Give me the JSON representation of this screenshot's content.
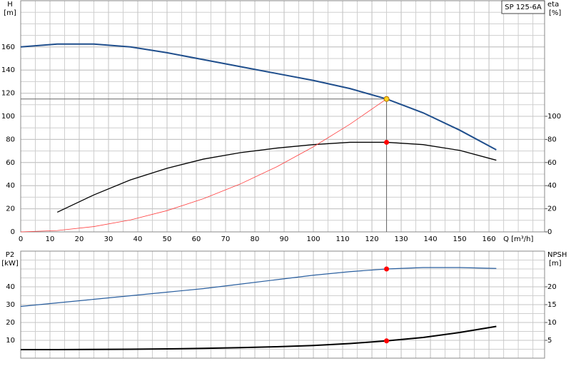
{
  "chart_data": [
    {
      "type": "line",
      "label_box": "SP 125-6A",
      "y_label": "H",
      "y_unit": "[m]",
      "y2_label": "eta",
      "y2_unit": "[%]",
      "x_label": "Q [m³/h]",
      "show_x_tick_labels": true,
      "x": [
        0,
        12.5,
        25,
        37.5,
        50,
        62.5,
        75,
        87.5,
        100,
        112.5,
        125,
        137.5,
        150,
        162.5
      ],
      "xlim": [
        0,
        179
      ],
      "xticks": [
        0,
        10,
        20,
        30,
        40,
        50,
        60,
        70,
        80,
        90,
        100,
        110,
        120,
        130,
        140,
        150,
        160
      ],
      "ylim": [
        0,
        200
      ],
      "yticks": [
        0,
        20,
        40,
        60,
        80,
        100,
        120,
        140,
        160
      ],
      "y2lim": [
        0,
        200
      ],
      "y2ticks": [
        0,
        20,
        40,
        60,
        80,
        100
      ],
      "grid": true,
      "series": [
        {
          "name": "H",
          "color": "#1f4e8c",
          "line_width": 2,
          "values": [
            160,
            162.5,
            162.5,
            160,
            155,
            149,
            143,
            137,
            131,
            124,
            115,
            103,
            88,
            71
          ]
        },
        {
          "name": "eta",
          "color": "#000000",
          "line_width": 1.3,
          "axis": "y2",
          "values": [
            null,
            17,
            32,
            45,
            55,
            63,
            68.5,
            72.5,
            75.5,
            77.5,
            77.5,
            75.5,
            70.5,
            62
          ]
        },
        {
          "name": "system",
          "color": "#ff4040",
          "line_width": 0.8,
          "values": [
            0,
            1.15,
            4.6,
            10.35,
            18.4,
            28.75,
            41.4,
            56.35,
            73.6,
            93.15,
            115,
            null,
            null,
            null
          ]
        }
      ],
      "markers": [
        {
          "x": 125,
          "y": 115,
          "axis": "y",
          "color": "#ffd21f",
          "guides": true
        },
        {
          "x": 125,
          "y": 77.5,
          "axis": "y2",
          "color": "#ff0000",
          "guides": false
        }
      ]
    },
    {
      "type": "line",
      "y_label": "P2",
      "y_unit": "[kW]",
      "y2_label": "NPSH",
      "y2_unit": "[m]",
      "show_x_tick_labels": false,
      "x": [
        0,
        12.5,
        25,
        37.5,
        50,
        62.5,
        75,
        87.5,
        100,
        112.5,
        125,
        137.5,
        150,
        162.5
      ],
      "xlim": [
        0,
        179
      ],
      "xticks": [
        0,
        10,
        20,
        30,
        40,
        50,
        60,
        70,
        80,
        90,
        100,
        110,
        120,
        130,
        140,
        150,
        160
      ],
      "ylim": [
        0,
        60
      ],
      "yticks": [
        10,
        20,
        30,
        40
      ],
      "y2lim": [
        0,
        30
      ],
      "y2ticks": [
        5,
        10,
        15,
        20
      ],
      "grid": true,
      "series": [
        {
          "name": "P2",
          "color": "#2a5f9f",
          "line_width": 1.2,
          "values": [
            29,
            31,
            33,
            35,
            37,
            39,
            41.5,
            44,
            46.5,
            48.5,
            50,
            50.8,
            50.8,
            50.3
          ]
        },
        {
          "name": "NPSH",
          "color": "#000000",
          "line_width": 2,
          "axis": "y2",
          "values": [
            2.4,
            2.4,
            2.45,
            2.5,
            2.6,
            2.75,
            2.95,
            3.2,
            3.55,
            4.1,
            4.85,
            5.8,
            7.2,
            8.9
          ]
        }
      ],
      "markers": [
        {
          "x": 125,
          "y": 50,
          "axis": "y",
          "color": "#ff0000",
          "guides": false
        },
        {
          "x": 125,
          "y": 4.85,
          "axis": "y2",
          "color": "#ff0000",
          "guides": false
        }
      ]
    }
  ]
}
